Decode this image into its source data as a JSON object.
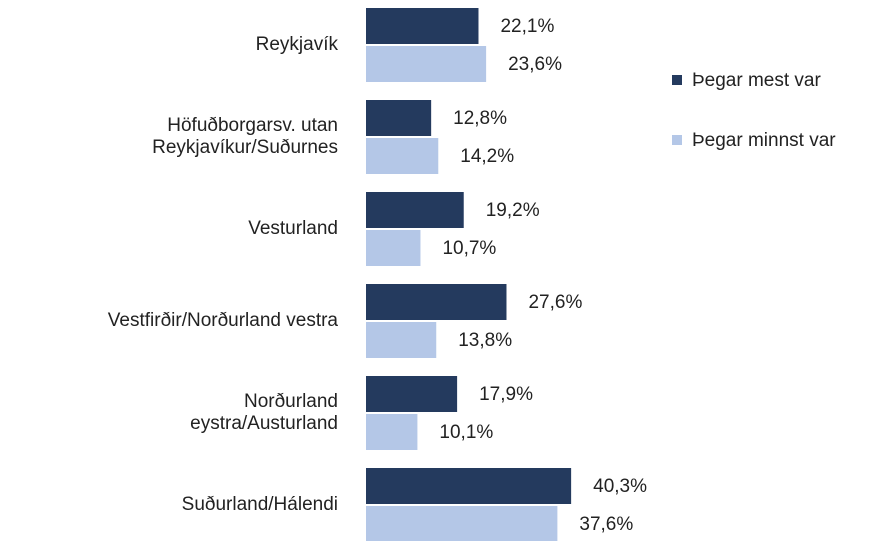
{
  "chart_data": {
    "type": "bar",
    "orientation": "horizontal",
    "categories": [
      [
        "Reykjavík"
      ],
      [
        "Höfuðborgarsv. utan",
        "Reykjavíkur/Suðurnes"
      ],
      [
        "Vesturland"
      ],
      [
        "Vestfirðir/Norðurland vestra"
      ],
      [
        "Norðurland",
        "eystra/Austurland"
      ],
      [
        "Suðurland/Hálendi"
      ]
    ],
    "series": [
      {
        "name": "Þegar mest var",
        "color": "#243a5e",
        "values": [
          22.1,
          12.8,
          19.2,
          27.6,
          17.9,
          40.3
        ],
        "value_labels": [
          "22,1%",
          "12,8%",
          "19,2%",
          "27,6%",
          "17,9%",
          "40,3%"
        ]
      },
      {
        "name": "Þegar minnst var",
        "color": "#b4c7e7",
        "values": [
          23.6,
          14.2,
          10.7,
          13.8,
          10.1,
          37.6
        ],
        "value_labels": [
          "23,6%",
          "14,2%",
          "10,7%",
          "13,8%",
          "10,1%",
          "37,6%"
        ]
      }
    ],
    "legend": "right"
  }
}
